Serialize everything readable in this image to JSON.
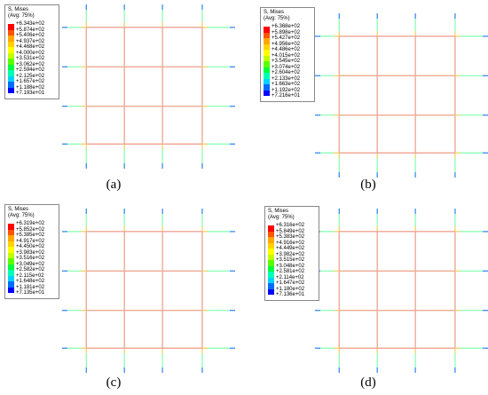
{
  "panels": [
    {
      "legend_title": "S, Mises",
      "legend_subtitle": "(Avg: 75%)",
      "caption": "(a)",
      "legend_values": [
        "+6.343e+02",
        "+5.874e+02",
        "+5.406e+02",
        "+4.937e+02",
        "+4.468e+02",
        "+4.000e+02",
        "+3.531e+02",
        "+3.062e+02",
        "+2.594e+02",
        "+2.125e+02",
        "+1.657e+02",
        "+1.188e+02",
        "+7.193e+01"
      ]
    },
    {
      "legend_title": "S, Mises",
      "legend_subtitle": "(Avg: 75%)",
      "caption": "(b)",
      "legend_values": [
        "+6.368e+02",
        "+5.898e+02",
        "+5.427e+02",
        "+4.956e+02",
        "+4.486e+02",
        "+4.015e+02",
        "+3.545e+02",
        "+3.074e+02",
        "+2.604e+02",
        "+2.133e+02",
        "+1.663e+02",
        "+1.192e+02",
        "+7.216e+01"
      ]
    },
    {
      "legend_title": "S, Mises",
      "legend_subtitle": "(Avg: 75%)",
      "caption": "(c)",
      "legend_values": [
        "+6.319e+02",
        "+5.852e+02",
        "+5.385e+02",
        "+4.917e+02",
        "+4.450e+02",
        "+3.983e+02",
        "+3.516e+02",
        "+3.049e+02",
        "+2.582e+02",
        "+2.115e+02",
        "+1.648e+02",
        "+1.181e+02",
        "+7.135e+01"
      ]
    },
    {
      "legend_title": "S, Mises",
      "legend_subtitle": "(Avg: 75%)",
      "caption": "(d)",
      "legend_values": [
        "+6.316e+02",
        "+5.849e+02",
        "+5.383e+02",
        "+4.916e+02",
        "+4.449e+02",
        "+3.982e+02",
        "+3.515e+02",
        "+3.048e+02",
        "+2.581e+02",
        "+2.114e+02",
        "+1.647e+02",
        "+1.180e+02",
        "+7.136e+01"
      ]
    }
  ]
}
